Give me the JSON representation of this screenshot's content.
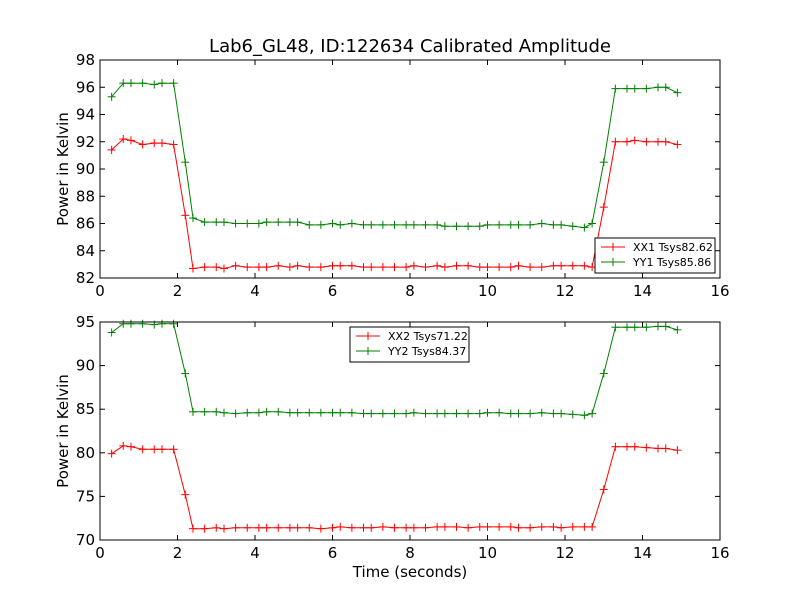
{
  "figure": {
    "title": "Lab6_GL48, ID:122634 Calibrated Amplitude",
    "xlabel": "Time (seconds)"
  },
  "chart_data": [
    {
      "type": "line",
      "title": "Lab6_GL48, ID:122634 Calibrated Amplitude",
      "xlabel": "",
      "ylabel": "Power in Kelvin",
      "xlim": [
        0,
        16
      ],
      "ylim": [
        82,
        98
      ],
      "xticks": [
        "0",
        "2",
        "4",
        "6",
        "8",
        "10",
        "12",
        "14",
        "16"
      ],
      "yticks": [
        "82",
        "84",
        "86",
        "88",
        "90",
        "92",
        "94",
        "96",
        "98"
      ],
      "grid": false,
      "legend_position": "lower-right",
      "x": [
        0.3,
        0.6,
        0.8,
        1.1,
        1.4,
        1.6,
        1.9,
        2.2,
        2.4,
        2.7,
        3.0,
        3.2,
        3.5,
        3.8,
        4.1,
        4.3,
        4.6,
        4.9,
        5.1,
        5.4,
        5.7,
        6.0,
        6.2,
        6.5,
        6.8,
        7.0,
        7.3,
        7.6,
        7.9,
        8.1,
        8.4,
        8.7,
        8.9,
        9.2,
        9.5,
        9.8,
        10.0,
        10.3,
        10.6,
        10.8,
        11.1,
        11.4,
        11.7,
        11.9,
        12.2,
        12.5,
        12.7,
        13.0,
        13.3,
        13.6,
        13.8,
        14.1,
        14.4,
        14.6,
        14.9
      ],
      "series": [
        {
          "name": "XX1 Tsys82.62",
          "color": "#ff0000",
          "values": [
            91.4,
            92.2,
            92.1,
            91.8,
            91.9,
            91.9,
            91.8,
            86.6,
            82.7,
            82.8,
            82.8,
            82.7,
            82.9,
            82.8,
            82.8,
            82.8,
            82.9,
            82.8,
            82.9,
            82.8,
            82.8,
            82.9,
            82.9,
            82.9,
            82.8,
            82.8,
            82.8,
            82.8,
            82.8,
            82.9,
            82.8,
            82.9,
            82.8,
            82.9,
            82.9,
            82.8,
            82.8,
            82.8,
            82.8,
            82.9,
            82.8,
            82.8,
            82.9,
            82.9,
            82.9,
            82.9,
            82.8,
            87.2,
            92.0,
            92.0,
            92.1,
            92.0,
            92.0,
            92.0,
            91.8
          ]
        },
        {
          "name": "YY1 Tsys85.86",
          "color": "#008000",
          "values": [
            95.3,
            96.3,
            96.3,
            96.3,
            96.2,
            96.3,
            96.3,
            90.5,
            86.4,
            86.1,
            86.1,
            86.1,
            86.0,
            86.0,
            86.0,
            86.1,
            86.1,
            86.1,
            86.1,
            85.9,
            85.9,
            86.0,
            85.9,
            86.0,
            85.9,
            85.9,
            85.9,
            85.9,
            85.9,
            85.9,
            85.9,
            85.9,
            85.8,
            85.8,
            85.8,
            85.8,
            85.9,
            85.9,
            85.9,
            85.9,
            85.9,
            86.0,
            85.9,
            85.9,
            85.8,
            85.7,
            86.0,
            90.5,
            95.9,
            95.9,
            95.9,
            95.9,
            96.0,
            96.0,
            95.6
          ]
        }
      ]
    },
    {
      "type": "line",
      "title": "",
      "xlabel": "Time (seconds)",
      "ylabel": "Power in Kelvin",
      "xlim": [
        0,
        16
      ],
      "ylim": [
        70,
        95
      ],
      "xticks": [
        "0",
        "2",
        "4",
        "6",
        "8",
        "10",
        "12",
        "14",
        "16"
      ],
      "yticks": [
        "70",
        "75",
        "80",
        "85",
        "90",
        "95"
      ],
      "grid": false,
      "legend_position": "upper-center",
      "x": [
        0.3,
        0.6,
        0.8,
        1.1,
        1.4,
        1.6,
        1.9,
        2.2,
        2.4,
        2.7,
        3.0,
        3.2,
        3.5,
        3.8,
        4.1,
        4.3,
        4.6,
        4.9,
        5.1,
        5.4,
        5.7,
        6.0,
        6.2,
        6.5,
        6.8,
        7.0,
        7.3,
        7.6,
        7.9,
        8.1,
        8.4,
        8.7,
        8.9,
        9.2,
        9.5,
        9.8,
        10.0,
        10.3,
        10.6,
        10.8,
        11.1,
        11.4,
        11.7,
        11.9,
        12.2,
        12.5,
        12.7,
        13.0,
        13.3,
        13.6,
        13.8,
        14.1,
        14.4,
        14.6,
        14.9
      ],
      "series": [
        {
          "name": "XX2 Tsys71.22",
          "color": "#ff0000",
          "values": [
            79.9,
            80.8,
            80.7,
            80.4,
            80.4,
            80.4,
            80.4,
            75.2,
            71.3,
            71.3,
            71.4,
            71.3,
            71.4,
            71.4,
            71.4,
            71.4,
            71.4,
            71.4,
            71.4,
            71.4,
            71.3,
            71.4,
            71.5,
            71.4,
            71.4,
            71.4,
            71.5,
            71.4,
            71.4,
            71.4,
            71.4,
            71.5,
            71.5,
            71.5,
            71.4,
            71.5,
            71.5,
            71.5,
            71.5,
            71.4,
            71.4,
            71.5,
            71.5,
            71.4,
            71.5,
            71.5,
            71.5,
            75.8,
            80.7,
            80.7,
            80.7,
            80.6,
            80.5,
            80.5,
            80.3
          ]
        },
        {
          "name": "YY2 Tsys84.37",
          "color": "#008000",
          "values": [
            93.8,
            94.8,
            94.8,
            94.8,
            94.7,
            94.8,
            94.8,
            89.1,
            84.7,
            84.7,
            84.7,
            84.6,
            84.5,
            84.6,
            84.6,
            84.7,
            84.7,
            84.6,
            84.6,
            84.6,
            84.6,
            84.6,
            84.6,
            84.6,
            84.5,
            84.5,
            84.5,
            84.5,
            84.5,
            84.6,
            84.5,
            84.5,
            84.5,
            84.5,
            84.5,
            84.5,
            84.6,
            84.6,
            84.5,
            84.5,
            84.5,
            84.6,
            84.5,
            84.5,
            84.4,
            84.3,
            84.5,
            89.1,
            94.4,
            94.4,
            94.4,
            94.4,
            94.5,
            94.5,
            94.1
          ]
        }
      ]
    }
  ]
}
